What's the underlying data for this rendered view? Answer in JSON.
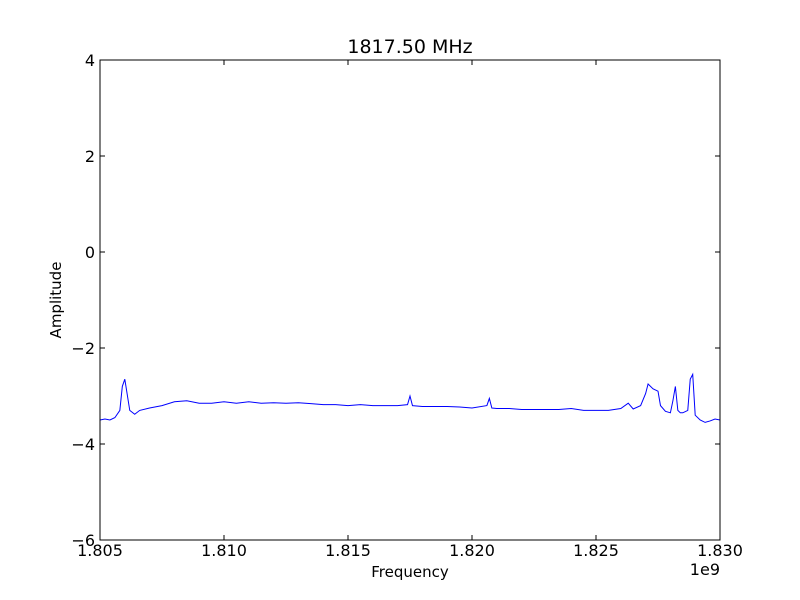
{
  "chart_data": {
    "type": "line",
    "title": "1817.50 MHz",
    "xlabel": "Frequency",
    "ylabel": "Amplitude",
    "x_offset_label": "1e9",
    "xlim": [
      1.805,
      1.83
    ],
    "ylim": [
      -6,
      4
    ],
    "xticks": [
      1.805,
      1.81,
      1.815,
      1.82,
      1.825,
      1.83
    ],
    "xtick_labels": [
      "1.805",
      "1.810",
      "1.815",
      "1.820",
      "1.825",
      "1.830"
    ],
    "yticks": [
      -6,
      -4,
      -2,
      0,
      2,
      4
    ],
    "ytick_labels": [
      "−6",
      "−4",
      "−2",
      "0",
      "2",
      "4"
    ],
    "grid": false,
    "series": [
      {
        "color": "#0000ff",
        "x": [
          1.805,
          1.8052,
          1.8054,
          1.8056,
          1.8058,
          1.8059,
          1.806,
          1.8062,
          1.8064,
          1.8066,
          1.807,
          1.8075,
          1.808,
          1.8085,
          1.809,
          1.8095,
          1.81,
          1.8105,
          1.811,
          1.8115,
          1.812,
          1.8125,
          1.813,
          1.8135,
          1.814,
          1.8145,
          1.815,
          1.8155,
          1.816,
          1.8165,
          1.817,
          1.8174,
          1.8175,
          1.8176,
          1.818,
          1.8185,
          1.819,
          1.8195,
          1.82,
          1.8206,
          1.8207,
          1.8208,
          1.821,
          1.8215,
          1.822,
          1.8225,
          1.823,
          1.8235,
          1.824,
          1.8245,
          1.825,
          1.8255,
          1.826,
          1.8263,
          1.8265,
          1.8268,
          1.827,
          1.8271,
          1.8273,
          1.8275,
          1.8276,
          1.8278,
          1.828,
          1.8281,
          1.8282,
          1.8283,
          1.8284,
          1.8285,
          1.8287,
          1.8288,
          1.8289,
          1.829,
          1.8292,
          1.8294,
          1.8296,
          1.8298,
          1.83
        ],
        "y": [
          -3.5,
          -3.48,
          -3.5,
          -3.45,
          -3.3,
          -2.8,
          -2.65,
          -3.3,
          -3.38,
          -3.3,
          -3.25,
          -3.2,
          -3.12,
          -3.1,
          -3.15,
          -3.15,
          -3.12,
          -3.15,
          -3.12,
          -3.15,
          -3.14,
          -3.15,
          -3.14,
          -3.16,
          -3.18,
          -3.18,
          -3.2,
          -3.18,
          -3.2,
          -3.2,
          -3.2,
          -3.18,
          -3.0,
          -3.2,
          -3.22,
          -3.22,
          -3.22,
          -3.23,
          -3.25,
          -3.2,
          -3.05,
          -3.25,
          -3.26,
          -3.26,
          -3.28,
          -3.28,
          -3.28,
          -3.28,
          -3.26,
          -3.3,
          -3.3,
          -3.3,
          -3.26,
          -3.15,
          -3.27,
          -3.2,
          -2.95,
          -2.75,
          -2.85,
          -2.9,
          -3.2,
          -3.32,
          -3.35,
          -3.1,
          -2.8,
          -3.3,
          -3.35,
          -3.35,
          -3.3,
          -2.65,
          -2.55,
          -3.4,
          -3.5,
          -3.55,
          -3.52,
          -3.48,
          -3.5
        ]
      }
    ]
  }
}
